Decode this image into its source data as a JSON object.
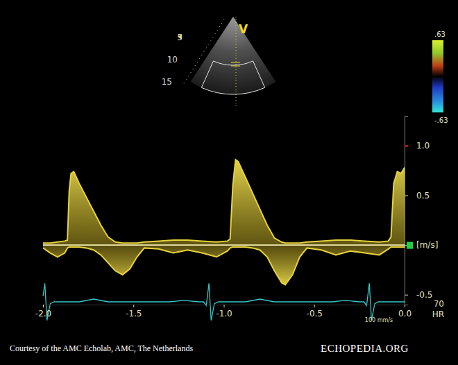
{
  "chart_data": {
    "type": "area",
    "x": [
      -2.0,
      -1.96,
      -1.92,
      -1.88,
      -1.865,
      -1.855,
      -1.845,
      -1.83,
      -1.8,
      -1.76,
      -1.72,
      -1.68,
      -1.64,
      -1.6,
      -1.56,
      -1.52,
      -1.48,
      -1.44,
      -1.36,
      -1.28,
      -1.2,
      -1.12,
      -1.04,
      -0.98,
      -0.965,
      -0.95,
      -0.935,
      -0.92,
      -0.88,
      -0.84,
      -0.8,
      -0.76,
      -0.72,
      -0.68,
      -0.66,
      -0.62,
      -0.58,
      -0.54,
      -0.46,
      -0.38,
      -0.3,
      -0.22,
      -0.14,
      -0.09,
      -0.075,
      -0.06,
      -0.04,
      -0.02,
      0.0
    ],
    "series": [
      {
        "color": "#e6d23c",
        "values": [
          0.02,
          0.02,
          0.03,
          0.04,
          0.05,
          0.55,
          0.72,
          0.74,
          0.62,
          0.48,
          0.34,
          0.2,
          0.08,
          0.03,
          0.02,
          0.02,
          0.02,
          0.03,
          0.04,
          0.05,
          0.05,
          0.04,
          0.03,
          0.04,
          0.06,
          0.6,
          0.86,
          0.84,
          0.68,
          0.52,
          0.36,
          0.2,
          0.07,
          0.03,
          0.02,
          0.02,
          0.02,
          0.03,
          0.04,
          0.05,
          0.05,
          0.04,
          0.03,
          0.04,
          0.08,
          0.62,
          0.74,
          0.72,
          0.78
        ]
      },
      {
        "color": "#e6d23c",
        "values": [
          -0.03,
          -0.08,
          -0.12,
          -0.08,
          -0.03,
          -0.02,
          -0.02,
          -0.02,
          -0.02,
          -0.03,
          -0.05,
          -0.1,
          -0.18,
          -0.26,
          -0.3,
          -0.24,
          -0.12,
          -0.03,
          -0.04,
          -0.08,
          -0.05,
          -0.08,
          -0.12,
          -0.06,
          -0.03,
          -0.02,
          -0.02,
          -0.02,
          -0.02,
          -0.03,
          -0.05,
          -0.12,
          -0.26,
          -0.38,
          -0.4,
          -0.3,
          -0.12,
          -0.03,
          -0.05,
          -0.1,
          -0.06,
          -0.08,
          -0.1,
          -0.04,
          -0.02,
          -0.02,
          -0.02,
          -0.02,
          -0.02
        ]
      }
    ],
    "xlim": [
      -2.0,
      0.0
    ],
    "xticks": [
      {
        "value": -2,
        "label": "-2.0"
      },
      -1.5,
      {
        "value": -1,
        "label": "-1.0"
      },
      -0.5,
      {
        "value": 0,
        "label": "0.0"
      }
    ],
    "ylim": [
      -0.6,
      1.3
    ],
    "yticks": [
      -0.5,
      {
        "value": 0,
        "label": "[m/s]"
      },
      0.5,
      {
        "value": 1,
        "label": "1.0"
      }
    ],
    "grid": false,
    "ecg": {
      "color": "#33c8c8",
      "ylim": [
        -1.2,
        1.2
      ],
      "x": [
        -2.0,
        -1.99,
        -1.978,
        -1.96,
        -1.94,
        -1.8,
        -1.72,
        -1.64,
        -1.3,
        -1.22,
        -1.14,
        -1.112,
        -1.097,
        -1.082,
        -1.07,
        -1.052,
        -1.03,
        -0.88,
        -0.8,
        -0.72,
        -0.4,
        -0.33,
        -0.25,
        -0.225,
        -0.21,
        -0.195,
        -0.183,
        -0.165,
        -0.145,
        -0.05,
        0.0
      ],
      "values": [
        0.3,
        1.0,
        -1.0,
        -0.1,
        0,
        0,
        0.15,
        0,
        0,
        0.08,
        0,
        0,
        -0.2,
        1.0,
        -1.0,
        -0.1,
        0,
        0,
        0.15,
        0,
        0,
        0.08,
        0,
        0,
        -0.2,
        1.0,
        -1.0,
        -0.1,
        0,
        0,
        0
      ]
    },
    "colorbar": {
      "range": [
        -0.63,
        0.63
      ],
      "ticks": [
        {
          "value": -0.63,
          "label": "-.63"
        },
        {
          "value": 0.63,
          "label": ".63"
        }
      ]
    },
    "annotations": {
      "sector_label": "V",
      "depths": [
        "5",
        "10",
        "15"
      ],
      "hr_value": "70",
      "hr_label": "HR",
      "sweep": "100 mm/s",
      "credit": "Courtesy of the AMC Echolab, AMC, The Netherlands",
      "logo": "ECHOPEDIA.ORG"
    }
  }
}
